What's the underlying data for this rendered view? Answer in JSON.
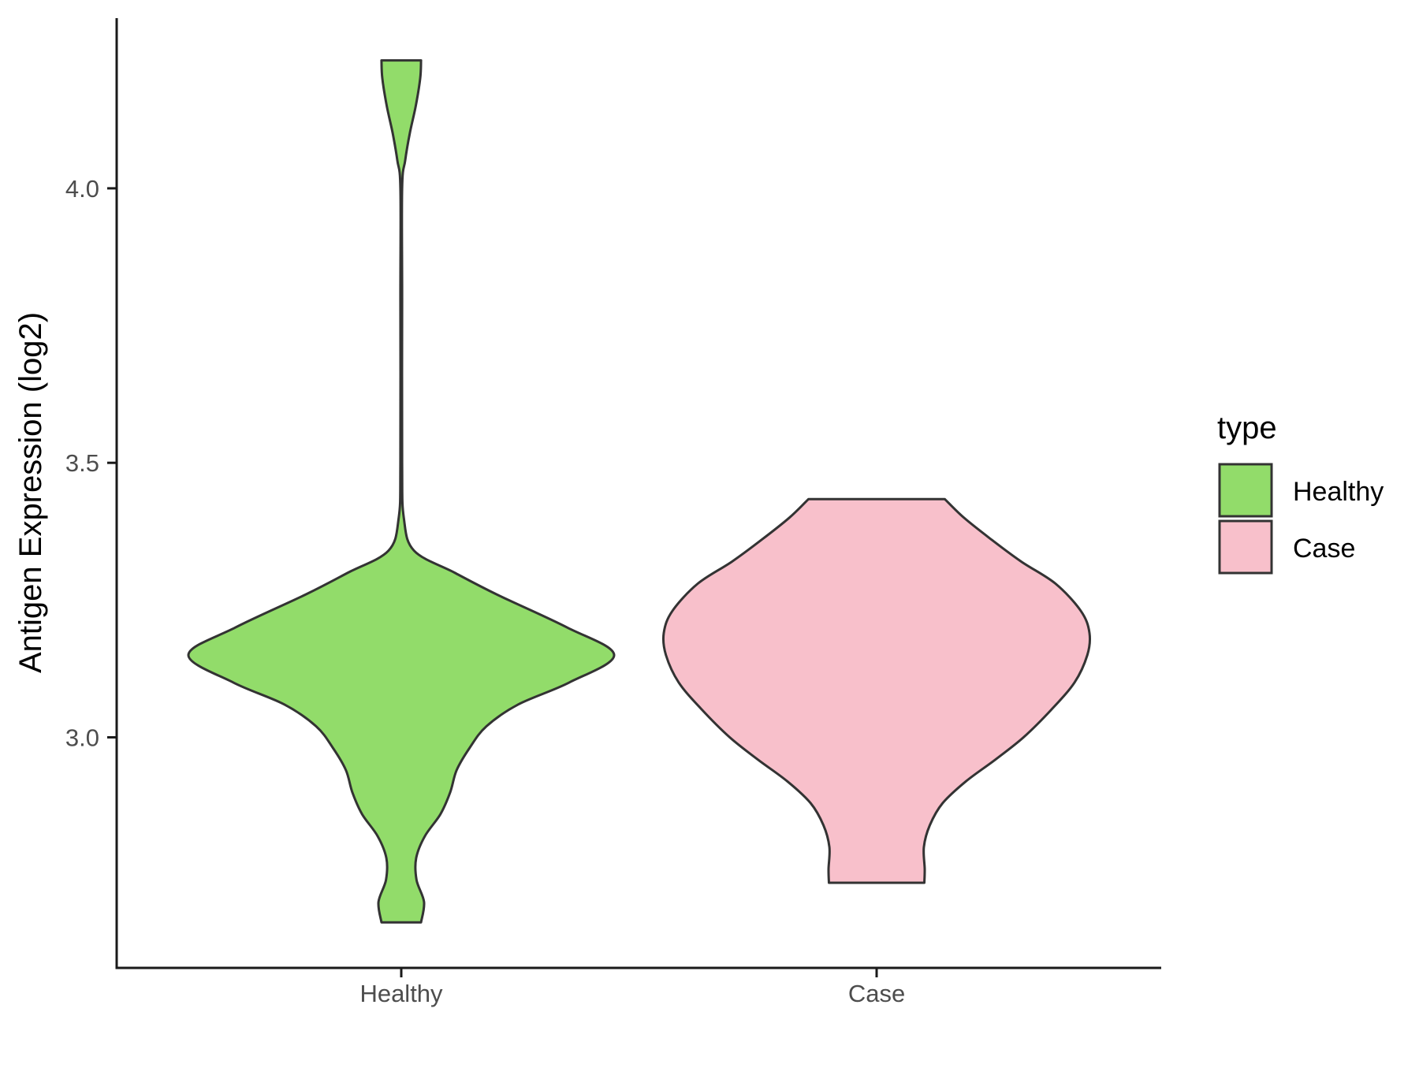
{
  "chart_data": {
    "type": "violin",
    "title": "",
    "xlabel": "",
    "ylabel": "Antigen Expression (log2)",
    "categories": [
      "Healthy",
      "Case"
    ],
    "yticks": [
      "3.0",
      "3.5",
      "4.0"
    ],
    "ytick_values": [
      3.0,
      3.5,
      4.0
    ],
    "ylim": [
      2.58,
      4.31
    ],
    "grid": false,
    "legend": {
      "title": "type",
      "position": "right",
      "entries": [
        {
          "label": "Healthy",
          "color": "#92dc6a"
        },
        {
          "label": "Case",
          "color": "#f8c0cb"
        }
      ]
    },
    "violins": [
      {
        "category": "Healthy",
        "color": "#92dc6a",
        "min": 2.663,
        "max": 4.233,
        "density_profile": [
          [
            2.663,
            0.093
          ],
          [
            2.7,
            0.107
          ],
          [
            2.74,
            0.072
          ],
          [
            2.78,
            0.07
          ],
          [
            2.82,
            0.111
          ],
          [
            2.86,
            0.184
          ],
          [
            2.9,
            0.23
          ],
          [
            2.94,
            0.26
          ],
          [
            2.98,
            0.32
          ],
          [
            3.02,
            0.4
          ],
          [
            3.06,
            0.55
          ],
          [
            3.1,
            0.79
          ],
          [
            3.15,
            1.0
          ],
          [
            3.2,
            0.78
          ],
          [
            3.26,
            0.45
          ],
          [
            3.3,
            0.25
          ],
          [
            3.34,
            0.06
          ],
          [
            3.4,
            0.012
          ],
          [
            3.5,
            0.004
          ],
          [
            3.8,
            0.004
          ],
          [
            4.0,
            0.004
          ],
          [
            4.05,
            0.018
          ],
          [
            4.1,
            0.04
          ],
          [
            4.15,
            0.068
          ],
          [
            4.2,
            0.089
          ],
          [
            4.233,
            0.093
          ]
        ]
      },
      {
        "category": "Case",
        "color": "#f8c0cb",
        "min": 2.735,
        "max": 3.434,
        "density_profile": [
          [
            2.735,
            0.224
          ],
          [
            2.76,
            0.226
          ],
          [
            2.8,
            0.222
          ],
          [
            2.84,
            0.25
          ],
          [
            2.88,
            0.31
          ],
          [
            2.92,
            0.42
          ],
          [
            2.96,
            0.56
          ],
          [
            3.0,
            0.69
          ],
          [
            3.05,
            0.82
          ],
          [
            3.1,
            0.93
          ],
          [
            3.15,
            0.99
          ],
          [
            3.19,
            1.0
          ],
          [
            3.23,
            0.96
          ],
          [
            3.28,
            0.84
          ],
          [
            3.32,
            0.68
          ],
          [
            3.36,
            0.54
          ],
          [
            3.4,
            0.41
          ],
          [
            3.434,
            0.32
          ]
        ]
      }
    ]
  }
}
